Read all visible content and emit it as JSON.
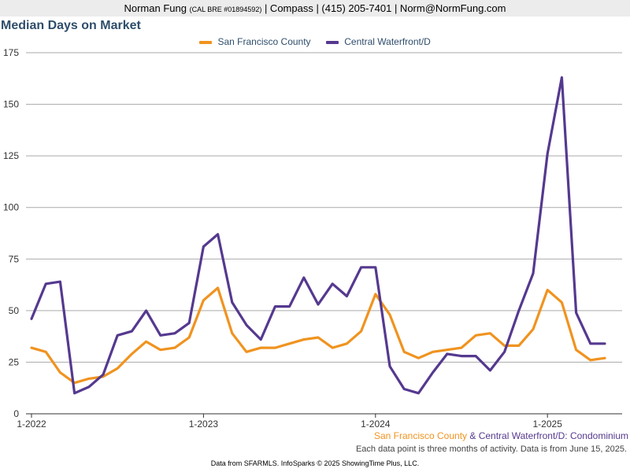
{
  "header": {
    "agent_name": "Norman Fung",
    "license": "(CAL BRE #01894592)",
    "rest": " | Compass | (415) 205-7401 | Norm@NormFung.com"
  },
  "colors": {
    "series1": "#f0931f",
    "series2": "#55398f",
    "title": "#2f4d6b",
    "grid": "#aaaaaa"
  },
  "chart_data": {
    "type": "line",
    "title": "Median Days on Market",
    "ylim": [
      0,
      175
    ],
    "yticks": [
      0,
      25,
      50,
      75,
      100,
      125,
      150,
      175
    ],
    "x_tick_labels": [
      {
        "label": "1-2022",
        "index": 0
      },
      {
        "label": "1-2023",
        "index": 12
      },
      {
        "label": "1-2024",
        "index": 24
      },
      {
        "label": "1-2025",
        "index": 36
      }
    ],
    "grid": true,
    "legend_position": "top",
    "x_start_month": "1-2022",
    "series": [
      {
        "name": "San Francisco County",
        "color": "#f0931f",
        "values": [
          32,
          30,
          20,
          15,
          17,
          18,
          22,
          29,
          35,
          31,
          32,
          37,
          55,
          61,
          39,
          30,
          32,
          32,
          34,
          36,
          37,
          32,
          34,
          40,
          58,
          48,
          30,
          27,
          30,
          31,
          32,
          38,
          39,
          33,
          33,
          41,
          60,
          54,
          31,
          26,
          27
        ]
      },
      {
        "name": "Central Waterfront/D",
        "color": "#55398f",
        "values": [
          46,
          63,
          64,
          10,
          13,
          19,
          38,
          40,
          50,
          38,
          39,
          44,
          81,
          87,
          54,
          43,
          36,
          52,
          52,
          66,
          53,
          63,
          57,
          71,
          71,
          23,
          12,
          10,
          20,
          29,
          28,
          28,
          21,
          30,
          50,
          68,
          126,
          163,
          49,
          34,
          34
        ]
      }
    ]
  },
  "footnote": {
    "series1": "San Francisco County",
    "amp": " & ",
    "series2": "Central Waterfront/D: Condominium",
    "note": "Each data point is three months of activity. Data is from June 15, 2025."
  },
  "footer": {
    "text": "Data from SFARMLS. InfoSparks © 2025 ShowingTime Plus, LLC."
  }
}
